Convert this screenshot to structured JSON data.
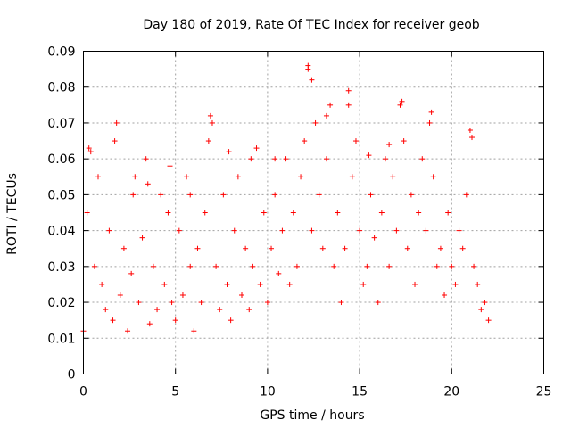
{
  "chart_data": {
    "type": "scatter",
    "title": "Day 180 of 2019, Rate Of TEC Index for receiver geob",
    "xlabel": "GPS time / hours",
    "ylabel": "ROTI / TECUs",
    "xlim": [
      0,
      25
    ],
    "ylim": [
      0,
      0.09
    ],
    "x_ticks": [
      0,
      5,
      10,
      15,
      20,
      25
    ],
    "y_ticks": [
      0,
      0.01,
      0.02,
      0.03,
      0.04,
      0.05,
      0.06,
      0.07,
      0.08,
      0.09
    ],
    "x_tick_labels": [
      "0",
      "5",
      "10",
      "15",
      "20",
      "25"
    ],
    "y_tick_labels": [
      "0",
      "0.01",
      "0.02",
      "0.03",
      "0.04",
      "0.05",
      "0.06",
      "0.07",
      "0.08",
      "0.09"
    ],
    "grid": true,
    "marker": "+",
    "color": "#ff0000",
    "series": [
      {
        "x": [
          0.0,
          0.2,
          0.4,
          0.6,
          0.8,
          1.0,
          1.2,
          1.4,
          1.6,
          1.8,
          2.0,
          2.2,
          2.4,
          2.6,
          2.8,
          3.0,
          3.2,
          3.4,
          3.6,
          3.8,
          4.0,
          4.2,
          4.4,
          4.6,
          4.8,
          5.0,
          5.2,
          5.4,
          5.6,
          5.8,
          6.0,
          6.2,
          6.4,
          6.6,
          6.8,
          7.0,
          7.2,
          7.4,
          7.6,
          7.8,
          8.0,
          8.2,
          8.4,
          8.6,
          8.8,
          9.0,
          9.2,
          9.4,
          9.6,
          9.8,
          10.0,
          10.2,
          10.4,
          10.6,
          10.8,
          11.0,
          11.2,
          11.4,
          11.6,
          11.8,
          12.0,
          12.2,
          12.4,
          12.6,
          12.8,
          13.0,
          13.2,
          13.4,
          13.6,
          13.8,
          14.0,
          14.2,
          14.4,
          14.6,
          14.8,
          15.0,
          15.2,
          15.4,
          15.6,
          15.8,
          16.0,
          16.2,
          16.4,
          16.6,
          16.8,
          17.0,
          17.2,
          17.4,
          17.6,
          17.8,
          18.0,
          18.2,
          18.4,
          18.6,
          18.8,
          19.0,
          19.2,
          19.4,
          19.6,
          19.8,
          20.0,
          20.2,
          20.4,
          20.6,
          20.8,
          21.0,
          21.2,
          21.4,
          21.6,
          21.8,
          22.0,
          0.3,
          1.7,
          2.7,
          3.5,
          4.7,
          5.8,
          6.9,
          7.9,
          9.1,
          10.4,
          12.2,
          12.4,
          13.2,
          14.4,
          15.5,
          16.6,
          17.3,
          18.9,
          21.1
        ],
        "y": [
          0.012,
          0.045,
          0.062,
          0.03,
          0.055,
          0.025,
          0.018,
          0.04,
          0.015,
          0.07,
          0.022,
          0.035,
          0.012,
          0.028,
          0.055,
          0.02,
          0.038,
          0.06,
          0.014,
          0.03,
          0.018,
          0.05,
          0.025,
          0.045,
          0.02,
          0.015,
          0.04,
          0.022,
          0.055,
          0.03,
          0.012,
          0.035,
          0.02,
          0.045,
          0.065,
          0.07,
          0.03,
          0.018,
          0.05,
          0.025,
          0.015,
          0.04,
          0.055,
          0.022,
          0.035,
          0.018,
          0.03,
          0.063,
          0.025,
          0.045,
          0.02,
          0.035,
          0.05,
          0.028,
          0.04,
          0.06,
          0.025,
          0.045,
          0.03,
          0.055,
          0.065,
          0.085,
          0.04,
          0.07,
          0.05,
          0.035,
          0.06,
          0.075,
          0.03,
          0.045,
          0.02,
          0.035,
          0.079,
          0.055,
          0.065,
          0.04,
          0.025,
          0.03,
          0.05,
          0.038,
          0.02,
          0.045,
          0.06,
          0.03,
          0.055,
          0.04,
          0.075,
          0.065,
          0.035,
          0.05,
          0.025,
          0.045,
          0.06,
          0.04,
          0.07,
          0.055,
          0.03,
          0.035,
          0.022,
          0.045,
          0.03,
          0.025,
          0.04,
          0.035,
          0.05,
          0.068,
          0.03,
          0.025,
          0.018,
          0.02,
          0.015,
          0.063,
          0.065,
          0.05,
          0.053,
          0.058,
          0.05,
          0.072,
          0.062,
          0.06,
          0.06,
          0.086,
          0.082,
          0.072,
          0.075,
          0.061,
          0.064,
          0.076,
          0.073,
          0.066
        ]
      }
    ]
  }
}
